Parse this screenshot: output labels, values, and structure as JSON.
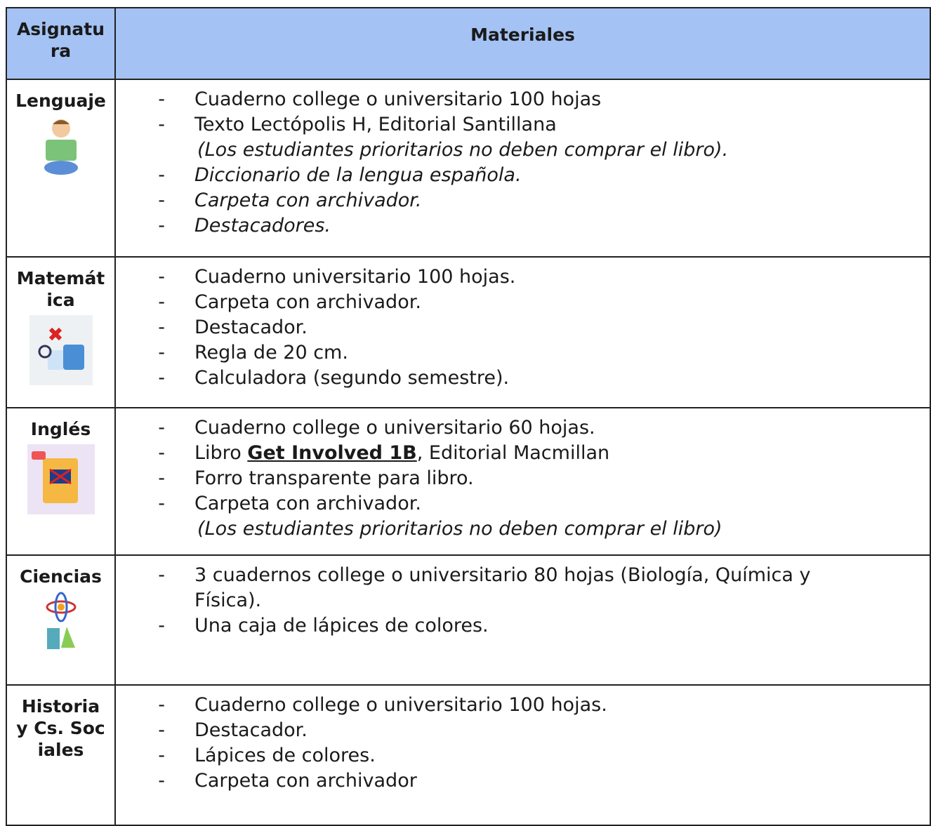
{
  "header": {
    "subject": "Asignatura",
    "materials": "Materiales"
  },
  "marker": "-",
  "rows": [
    {
      "subject": "Lenguaje",
      "items": [
        {
          "text": "Cuaderno college o universitario 100 hojas"
        },
        {
          "text": "Texto Lectópolis H, Editorial Santillana"
        },
        {
          "text": "(Los estudiantes prioritarios no deben comprar el libro).",
          "style": "note"
        },
        {
          "text": "Diccionario de la lengua española.",
          "style": "italic"
        },
        {
          "text": "Carpeta con archivador.",
          "style": "italic"
        },
        {
          "text": "Destacadores.",
          "style": "italic"
        }
      ]
    },
    {
      "subject": "Matemática",
      "items": [
        {
          "text": "Cuaderno universitario 100 hojas."
        },
        {
          "text": "Carpeta con archivador."
        },
        {
          "text": "Destacador."
        },
        {
          "text": "Regla de 20 cm."
        },
        {
          "text": "Calculadora (segundo semestre)."
        }
      ]
    },
    {
      "subject": "Inglés",
      "items": [
        {
          "text": "Cuaderno college o universitario 60 hojas."
        },
        {
          "text": "Libro ",
          "link": "Get Involved 1B",
          "after": ", Editorial Macmillan"
        },
        {
          "text": "Forro transparente para libro."
        },
        {
          "text": "Carpeta con archivador."
        },
        {
          "text": "(Los estudiantes prioritarios no deben comprar el libro)",
          "style": "note"
        }
      ]
    },
    {
      "subject": "Ciencias",
      "items": [
        {
          "text": "3 cuadernos college o universitario 80 hojas (Biología, Química y Física)."
        },
        {
          "text": "Una caja de lápices de colores."
        }
      ]
    },
    {
      "subject": "Historia y Cs. Sociales",
      "items": [
        {
          "text": "Cuaderno college o universitario 100 hojas."
        },
        {
          "text": "Destacador."
        },
        {
          "text": "Lápices de colores."
        },
        {
          "text": "Carpeta con archivador"
        }
      ]
    }
  ]
}
